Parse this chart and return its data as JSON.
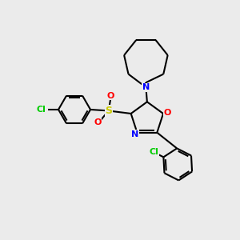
{
  "bg_color": "#ebebeb",
  "atom_colors": {
    "Cl": "#00cc00",
    "S": "#cccc00",
    "O": "#ff0000",
    "N": "#0000ff",
    "C": "#000000"
  },
  "bond_color": "#000000",
  "bond_width": 1.5
}
